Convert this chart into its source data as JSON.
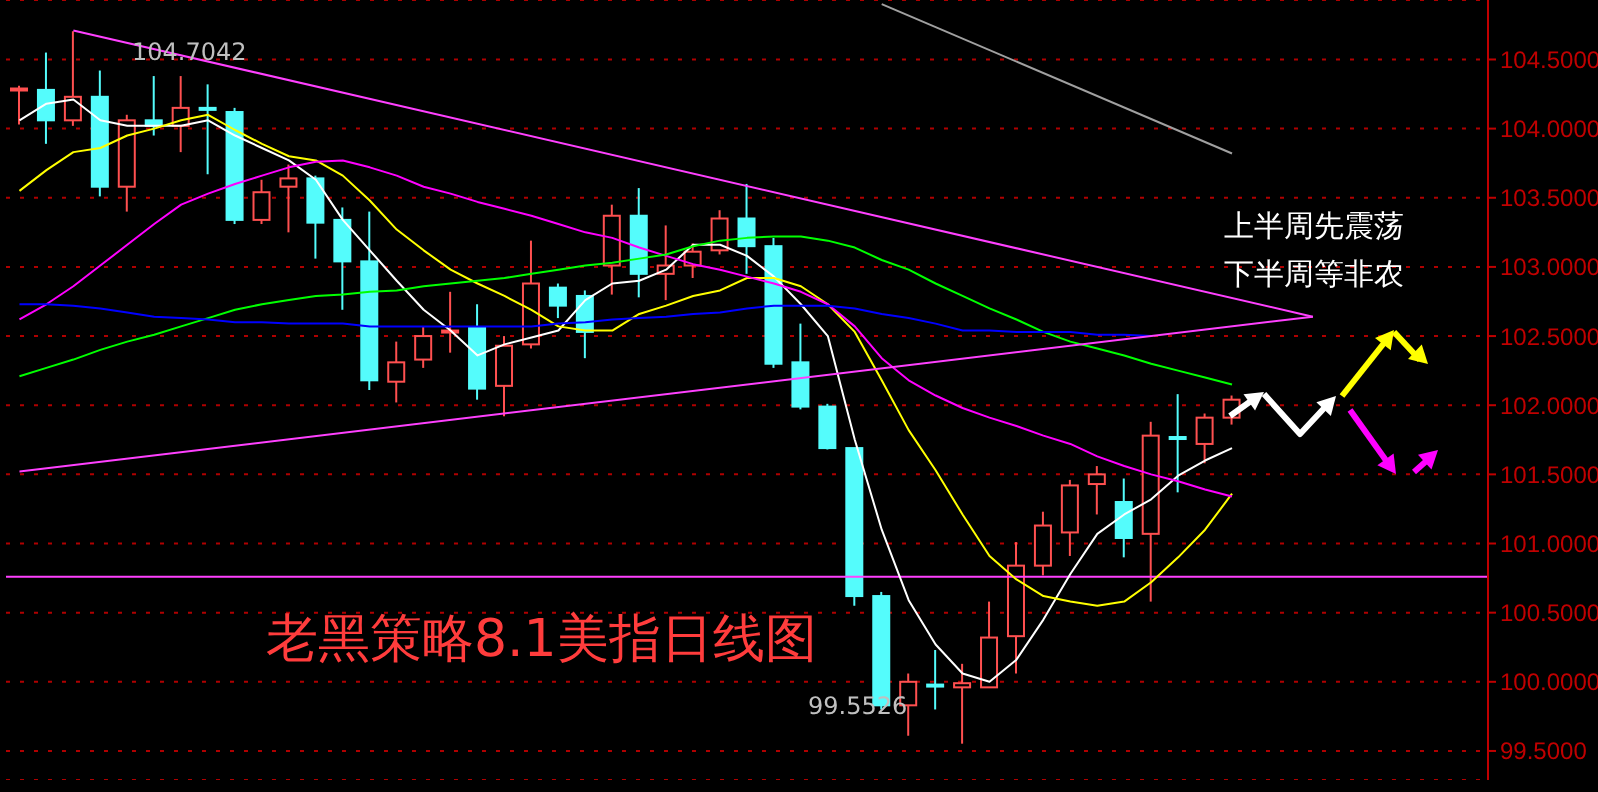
{
  "chart_data": {
    "type": "candlestick",
    "title": "老黑策略8.1美指日线图",
    "categories": [
      null,
      null,
      null,
      null,
      null,
      null,
      null,
      null,
      null,
      null,
      null,
      null,
      null,
      null,
      null,
      null,
      null,
      null,
      null,
      null,
      null,
      null,
      null,
      null,
      null,
      null,
      null,
      null,
      null,
      null,
      null,
      null,
      null,
      null,
      null,
      null,
      null,
      null,
      null,
      null,
      null,
      null,
      null,
      null,
      null,
      null,
      null,
      null,
      null,
      null,
      null,
      null,
      null,
      null,
      null
    ],
    "ohlc": [
      [
        104.28,
        104.31,
        104.03,
        104.29
      ],
      [
        104.28,
        104.55,
        103.89,
        104.06
      ],
      [
        104.06,
        104.7042,
        104.02,
        104.23
      ],
      [
        104.23,
        104.42,
        103.51,
        103.58
      ],
      [
        103.58,
        104.1,
        103.4,
        104.06
      ],
      [
        104.06,
        104.38,
        103.95,
        104.02
      ],
      [
        104.02,
        104.38,
        103.83,
        104.15
      ],
      [
        104.15,
        104.32,
        103.67,
        104.14
      ],
      [
        104.12,
        104.15,
        103.31,
        103.34
      ],
      [
        103.34,
        103.63,
        103.31,
        103.54
      ],
      [
        103.58,
        103.74,
        103.25,
        103.64
      ],
      [
        103.64,
        103.66,
        103.06,
        103.32
      ],
      [
        103.34,
        103.43,
        102.69,
        103.04
      ],
      [
        103.04,
        103.4,
        102.11,
        102.18
      ],
      [
        102.17,
        102.46,
        102.02,
        102.31
      ],
      [
        102.33,
        102.57,
        102.27,
        102.5
      ],
      [
        102.53,
        102.82,
        102.38,
        102.54
      ],
      [
        102.56,
        102.73,
        102.04,
        102.12
      ],
      [
        102.14,
        102.5,
        101.92,
        102.43
      ],
      [
        102.44,
        103.19,
        102.41,
        102.88
      ],
      [
        102.85,
        102.88,
        102.63,
        102.72
      ],
      [
        102.79,
        102.83,
        102.34,
        102.53
      ],
      [
        103.01,
        103.45,
        102.8,
        103.37
      ],
      [
        103.37,
        103.57,
        102.78,
        102.95
      ],
      [
        102.95,
        103.3,
        102.76,
        103.01
      ],
      [
        103.01,
        103.17,
        102.92,
        103.11
      ],
      [
        103.12,
        103.41,
        103.09,
        103.35
      ],
      [
        103.35,
        103.6,
        102.95,
        103.15
      ],
      [
        103.15,
        103.21,
        102.27,
        102.3
      ],
      [
        102.31,
        102.59,
        101.97,
        101.99
      ],
      [
        101.99,
        102.01,
        101.68,
        101.69
      ],
      [
        101.69,
        101.69,
        100.55,
        100.62
      ],
      [
        100.62,
        100.65,
        99.8,
        99.83
      ],
      [
        99.83,
        100.06,
        99.61,
        100.0
      ],
      [
        99.98,
        100.23,
        99.8,
        99.97
      ],
      [
        99.96,
        100.13,
        99.5526,
        99.99
      ],
      [
        99.96,
        100.58,
        99.96,
        100.32
      ],
      [
        100.33,
        101.01,
        100.06,
        100.84
      ],
      [
        100.84,
        101.23,
        100.77,
        101.13
      ],
      [
        101.08,
        101.46,
        100.91,
        101.42
      ],
      [
        101.43,
        101.56,
        101.21,
        101.5
      ],
      [
        101.3,
        101.47,
        100.9,
        101.04
      ],
      [
        101.07,
        101.88,
        100.58,
        101.78
      ],
      [
        101.77,
        102.08,
        101.37,
        101.76
      ],
      [
        101.72,
        101.94,
        101.58,
        101.91
      ],
      [
        101.91,
        102.07,
        101.86,
        102.04
      ],
      null,
      null,
      null,
      null,
      null,
      null,
      null,
      null,
      null
    ],
    "colors": [
      "#ff5050",
      "#54fcfc",
      "#ff5050",
      "#54fcfc",
      "#ff5050",
      "#54fcfc",
      "#ff5050",
      "#54fcfc",
      "#54fcfc",
      "#ff5050",
      "#ff5050",
      "#54fcfc",
      "#54fcfc",
      "#54fcfc",
      "#ff5050",
      "#ff5050",
      "#ff5050",
      "#54fcfc",
      "#ff5050",
      "#ff5050",
      "#54fcfc",
      "#54fcfc",
      "#ff5050",
      "#54fcfc",
      "#ff5050",
      "#ff5050",
      "#ff5050",
      "#54fcfc",
      "#54fcfc",
      "#54fcfc",
      "#54fcfc",
      "#54fcfc",
      "#54fcfc",
      "#ff5050",
      "#54fcfc",
      "#ff5050",
      "#ff5050",
      "#ff5050",
      "#ff5050",
      "#ff5050",
      "#ff5050",
      "#54fcfc",
      "#ff5050",
      "#54fcfc",
      "#ff5050",
      "#ff5050",
      null,
      null,
      null,
      null,
      null,
      null,
      null,
      null,
      null
    ],
    "series": [
      {
        "type": "line",
        "color": "#ffffff",
        "values": [
          104.06,
          104.18,
          104.21,
          104.06,
          104.02,
          104.02,
          104.02,
          104.06,
          103.95,
          103.86,
          103.77,
          103.63,
          103.34,
          103.12,
          102.9,
          102.69,
          102.54,
          102.36,
          102.44,
          102.49,
          102.54,
          102.76,
          102.88,
          102.9,
          102.98,
          103.16,
          103.16,
          103.08,
          102.93,
          102.73,
          102.5,
          101.75,
          101.1,
          100.59,
          100.27,
          100.06,
          100.0,
          100.16,
          100.45,
          100.78,
          101.07,
          101.21,
          101.32,
          101.49,
          101.6,
          101.69,
          null,
          null,
          null,
          null,
          null,
          null,
          null,
          null,
          null
        ]
      },
      {
        "type": "line",
        "color": "#ffff00",
        "values": [
          103.55,
          103.7,
          103.83,
          103.86,
          103.95,
          104.0,
          104.06,
          104.1,
          103.99,
          103.89,
          103.8,
          103.77,
          103.66,
          103.48,
          103.27,
          103.12,
          102.98,
          102.88,
          102.79,
          102.69,
          102.57,
          102.54,
          102.54,
          102.66,
          102.72,
          102.79,
          102.83,
          102.92,
          102.92,
          102.86,
          102.73,
          102.53,
          102.18,
          101.82,
          101.53,
          101.21,
          100.91,
          100.74,
          100.62,
          100.58,
          100.55,
          100.58,
          100.72,
          100.9,
          101.1,
          101.36,
          null,
          null,
          null,
          null,
          null,
          null,
          null,
          null,
          null
        ]
      },
      {
        "type": "line",
        "color": "#ff00ff",
        "values": [
          102.62,
          102.73,
          102.86,
          103.01,
          103.16,
          103.31,
          103.45,
          103.53,
          103.6,
          103.66,
          103.72,
          103.76,
          103.77,
          103.72,
          103.66,
          103.58,
          103.53,
          103.47,
          103.42,
          103.37,
          103.31,
          103.25,
          103.21,
          103.14,
          103.08,
          103.02,
          102.98,
          102.93,
          102.88,
          102.82,
          102.73,
          102.57,
          102.34,
          102.18,
          102.07,
          101.98,
          101.91,
          101.85,
          101.78,
          101.72,
          101.63,
          101.56,
          101.5,
          101.45,
          101.39,
          101.34,
          null,
          null,
          null,
          null,
          null,
          null,
          null,
          null,
          null
        ]
      },
      {
        "type": "line",
        "color": "#00ff00",
        "values": [
          102.21,
          102.27,
          102.33,
          102.4,
          102.46,
          102.51,
          102.57,
          102.63,
          102.69,
          102.73,
          102.76,
          102.79,
          102.8,
          102.82,
          102.83,
          102.86,
          102.88,
          102.9,
          102.92,
          102.95,
          102.98,
          103.01,
          103.03,
          103.06,
          103.09,
          103.15,
          103.19,
          103.21,
          103.22,
          103.22,
          103.19,
          103.14,
          103.05,
          102.98,
          102.88,
          102.79,
          102.7,
          102.62,
          102.53,
          102.46,
          102.41,
          102.36,
          102.3,
          102.25,
          102.2,
          102.15,
          null,
          null,
          null,
          null,
          null,
          null,
          null,
          null,
          null
        ]
      },
      {
        "type": "line",
        "color": "#0000ff",
        "values": [
          102.73,
          102.73,
          102.72,
          102.7,
          102.67,
          102.64,
          102.63,
          102.62,
          102.6,
          102.6,
          102.59,
          102.59,
          102.59,
          102.57,
          102.57,
          102.57,
          102.57,
          102.57,
          102.57,
          102.57,
          102.59,
          102.6,
          102.62,
          102.63,
          102.64,
          102.66,
          102.67,
          102.7,
          102.72,
          102.72,
          102.72,
          102.7,
          102.66,
          102.63,
          102.59,
          102.54,
          102.54,
          102.53,
          102.53,
          102.53,
          102.51,
          102.51,
          102.5,
          null,
          null,
          null,
          null,
          null,
          null,
          null,
          null,
          null,
          null,
          null,
          null
        ]
      },
      {
        "type": "line",
        "color": "#ff40ff",
        "values": [
          null,
          null,
          104.71,
          null,
          null,
          null,
          null,
          null,
          null,
          null,
          null,
          null,
          null,
          null,
          null,
          null,
          null,
          null,
          null,
          null,
          null,
          null,
          null,
          null,
          null,
          null,
          null,
          null,
          null,
          null,
          null,
          null,
          null,
          null,
          null,
          null,
          null,
          null,
          null,
          null,
          null,
          null,
          null,
          null,
          null,
          null,
          null,
          null,
          102.64,
          null,
          null,
          null,
          null,
          null,
          null
        ]
      },
      {
        "type": "line",
        "color": "#ff40ff",
        "values": [
          101.52,
          null,
          null,
          null,
          null,
          null,
          null,
          null,
          null,
          null,
          null,
          null,
          null,
          null,
          null,
          null,
          null,
          null,
          null,
          null,
          null,
          null,
          null,
          null,
          null,
          null,
          null,
          null,
          null,
          null,
          null,
          null,
          null,
          null,
          null,
          null,
          null,
          null,
          null,
          null,
          null,
          null,
          null,
          null,
          null,
          null,
          null,
          null,
          102.64,
          null,
          null,
          null,
          null,
          null,
          null
        ]
      },
      {
        "type": "line",
        "color": "#a0a0a0",
        "values": [
          null,
          null,
          null,
          null,
          null,
          null,
          null,
          null,
          null,
          null,
          null,
          null,
          null,
          null,
          null,
          null,
          null,
          null,
          null,
          null,
          null,
          null,
          null,
          null,
          null,
          null,
          null,
          null,
          null,
          null,
          null,
          null,
          104.9,
          null,
          null,
          null,
          null,
          null,
          null,
          null,
          null,
          null,
          null,
          null,
          null,
          103.82,
          null,
          null,
          null,
          null,
          null,
          null,
          null,
          null,
          null
        ]
      }
    ],
    "ref_lines": [
      {
        "axis": "y",
        "value": 100.76,
        "color": "#ff40ff"
      }
    ],
    "annotations": [
      "104.7042",
      "99.5526",
      "上半周先震荡",
      "下半周等非农"
    ],
    "ylim": [
      99.29,
      104.93
    ],
    "yticks": [
      {
        "value": 99.5,
        "label": "99.5000"
      },
      {
        "value": 100,
        "label": "100.0000"
      },
      {
        "value": 100.5,
        "label": "100.5000"
      },
      {
        "value": 101,
        "label": "101.0000"
      },
      {
        "value": 101.5,
        "label": "101.5000"
      },
      {
        "value": 102,
        "label": "102.0000"
      },
      {
        "value": 102.5,
        "label": "102.5000"
      },
      {
        "value": 103,
        "label": "103.0000"
      },
      {
        "value": 103.5,
        "label": "103.5000"
      },
      {
        "value": 104,
        "label": "104.0000"
      },
      {
        "value": 104.5,
        "label": "104.5000"
      }
    ],
    "grid": "y",
    "tick_labels": "y"
  }
}
